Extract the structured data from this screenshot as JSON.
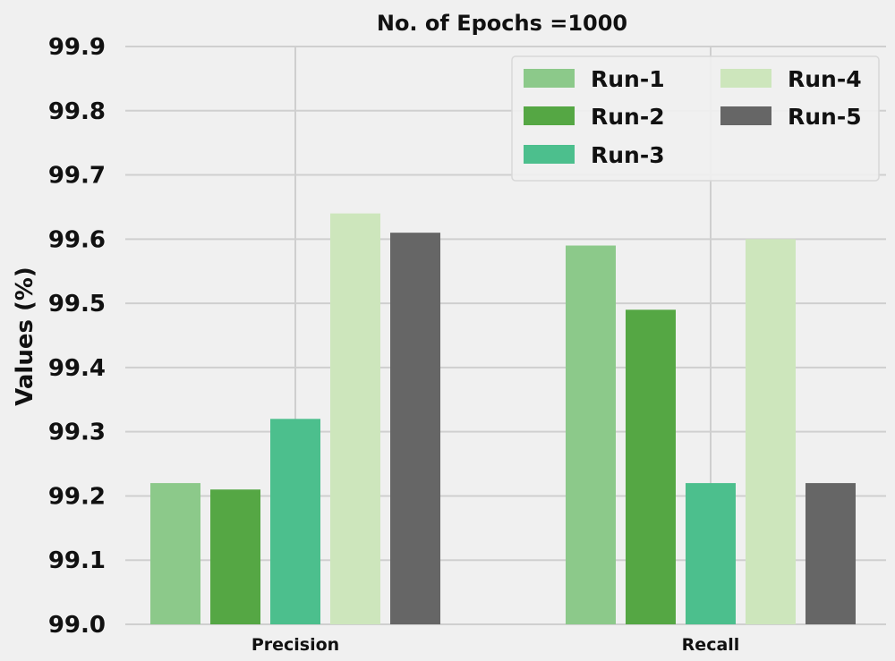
{
  "chart_data": {
    "type": "bar",
    "title": "No. of Epochs =1000",
    "xlabel": "",
    "ylabel": "Values (%)",
    "categories": [
      "Precision",
      "Recall"
    ],
    "ylim": [
      99.0,
      99.9
    ],
    "yticks": [
      "99.0",
      "99.1",
      "99.2",
      "99.3",
      "99.4",
      "99.5",
      "99.6",
      "99.7",
      "99.8",
      "99.9"
    ],
    "grid": true,
    "legend_position": "top-right",
    "series": [
      {
        "name": "Run-1",
        "color": "#8cc98a",
        "values": [
          99.22,
          99.59
        ]
      },
      {
        "name": "Run-2",
        "color": "#55a744",
        "values": [
          99.21,
          99.49
        ]
      },
      {
        "name": "Run-3",
        "color": "#4cbf8d",
        "values": [
          99.32,
          99.22
        ]
      },
      {
        "name": "Run-4",
        "color": "#cde6bc",
        "values": [
          99.64,
          99.6
        ]
      },
      {
        "name": "Run-5",
        "color": "#666666",
        "values": [
          99.61,
          99.22
        ]
      }
    ]
  }
}
